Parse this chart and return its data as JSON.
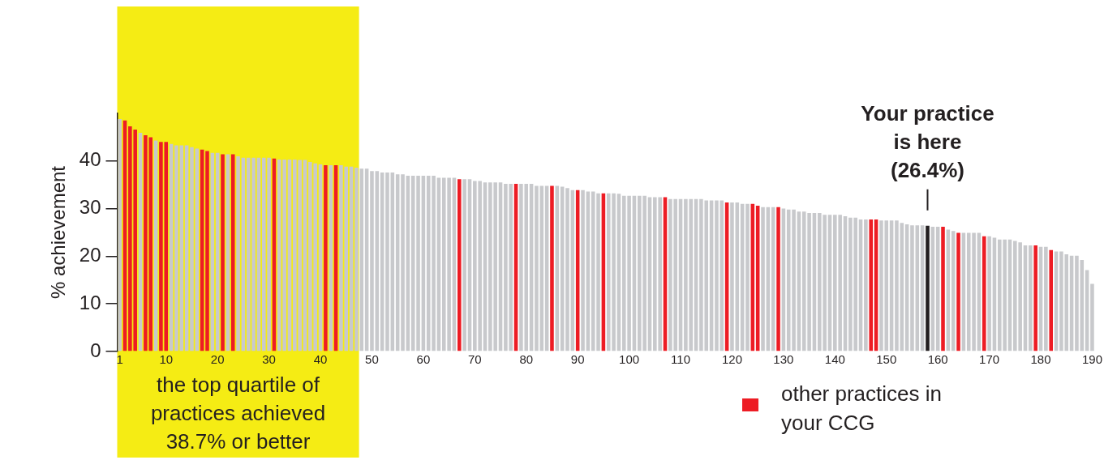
{
  "chart_data": {
    "type": "bar",
    "ylabel": "% achievement",
    "x": [
      1,
      2,
      3,
      4,
      5,
      6,
      7,
      8,
      9,
      10,
      11,
      12,
      13,
      14,
      15,
      16,
      17,
      18,
      19,
      20,
      21,
      22,
      23,
      24,
      25,
      26,
      27,
      28,
      29,
      30,
      31,
      32,
      33,
      34,
      35,
      36,
      37,
      38,
      39,
      40,
      41,
      42,
      43,
      44,
      45,
      46,
      47,
      48,
      49,
      50,
      51,
      52,
      53,
      54,
      55,
      56,
      57,
      58,
      59,
      60,
      61,
      62,
      63,
      64,
      65,
      66,
      67,
      68,
      69,
      70,
      71,
      72,
      73,
      74,
      75,
      76,
      77,
      78,
      79,
      80,
      81,
      82,
      83,
      84,
      85,
      86,
      87,
      88,
      89,
      90,
      91,
      92,
      93,
      94,
      95,
      96,
      97,
      98,
      99,
      100,
      101,
      102,
      103,
      104,
      105,
      106,
      107,
      108,
      109,
      110,
      111,
      112,
      113,
      114,
      115,
      116,
      117,
      118,
      119,
      120,
      121,
      122,
      123,
      124,
      125,
      126,
      127,
      128,
      129,
      130,
      131,
      132,
      133,
      134,
      135,
      136,
      137,
      138,
      139,
      140,
      141,
      142,
      143,
      144,
      145,
      146,
      147,
      148,
      149,
      150,
      151,
      152,
      153,
      154,
      155,
      156,
      157,
      158,
      159,
      160,
      161,
      162,
      163,
      164,
      165,
      166,
      167,
      168,
      169,
      170,
      171,
      172,
      173,
      174,
      175,
      176,
      177,
      178,
      179,
      180,
      181,
      182,
      183,
      184,
      185,
      186,
      187,
      188,
      189,
      190
    ],
    "xlim": [
      0.5,
      190.5
    ],
    "xticks": [
      1,
      10,
      20,
      30,
      40,
      50,
      60,
      70,
      80,
      90,
      100,
      110,
      120,
      130,
      140,
      150,
      160,
      170,
      180,
      190
    ],
    "ylim": [
      0,
      50
    ],
    "yticks": [
      0,
      10,
      20,
      30,
      40
    ],
    "grid": false,
    "legend": "bottom right",
    "series": [
      {
        "color": "#c8c9cc",
        "values": [
          48.8,
          null,
          null,
          null,
          45.9,
          null,
          null,
          44.3,
          null,
          null,
          43.6,
          43.3,
          43.3,
          43.3,
          42.9,
          42.6,
          null,
          null,
          41.7,
          41.7,
          null,
          41.4,
          null,
          41.0,
          40.7,
          40.7,
          40.7,
          40.7,
          40.7,
          40.7,
          null,
          40.3,
          40.3,
          40.3,
          40.3,
          40.2,
          40.2,
          39.8,
          39.5,
          39.3,
          null,
          39.1,
          null,
          39.1,
          38.8,
          38.8,
          38.6,
          38.4,
          38.4,
          37.9,
          37.9,
          37.6,
          37.6,
          37.6,
          37.2,
          37.2,
          36.9,
          36.9,
          36.9,
          36.9,
          36.9,
          36.9,
          36.5,
          36.5,
          36.5,
          36.5,
          null,
          36.2,
          36.2,
          35.8,
          35.8,
          35.5,
          35.5,
          35.5,
          35.5,
          35.2,
          35.2,
          null,
          35.2,
          35.2,
          35.2,
          34.8,
          34.8,
          34.8,
          null,
          34.8,
          34.6,
          34.3,
          33.9,
          null,
          33.9,
          33.6,
          33.6,
          33.2,
          null,
          33.2,
          33.2,
          33.1,
          32.7,
          32.7,
          32.7,
          32.7,
          32.7,
          32.4,
          32.4,
          32.4,
          null,
          32.0,
          32.0,
          32.0,
          32.0,
          32.0,
          32.0,
          32.0,
          31.7,
          31.7,
          31.7,
          31.7,
          null,
          31.3,
          31.3,
          31.0,
          31.0,
          null,
          null,
          30.3,
          30.3,
          30.3,
          null,
          30.0,
          29.8,
          29.8,
          29.4,
          29.4,
          29.1,
          29.1,
          29.1,
          28.7,
          28.7,
          28.7,
          28.7,
          28.4,
          28.1,
          28.1,
          27.7,
          27.7,
          null,
          null,
          27.5,
          27.5,
          27.5,
          27.5,
          27.0,
          26.7,
          26.5,
          26.5,
          26.5,
          null,
          26.2,
          26.2,
          null,
          25.6,
          25.3,
          null,
          24.9,
          24.9,
          24.9,
          24.9,
          null,
          24.2,
          23.9,
          23.5,
          23.5,
          23.5,
          23.2,
          22.9,
          22.3,
          22.3,
          null,
          22.0,
          22.0,
          null,
          21.0,
          21.0,
          20.4,
          20.1,
          20.1,
          19.2,
          17.1,
          14.2
        ]
      },
      {
        "name": "other practices in your CCG",
        "color": "#ed1c24",
        "values": [
          null,
          48.5,
          47.3,
          46.6,
          null,
          45.4,
          45.0,
          null,
          44.0,
          44.0,
          null,
          null,
          null,
          null,
          null,
          null,
          42.4,
          42.1,
          null,
          null,
          41.4,
          null,
          41.4,
          null,
          null,
          null,
          null,
          null,
          null,
          null,
          40.5,
          null,
          null,
          null,
          null,
          null,
          null,
          null,
          null,
          null,
          39.1,
          null,
          39.1,
          null,
          null,
          null,
          null,
          null,
          null,
          null,
          null,
          null,
          null,
          null,
          null,
          null,
          null,
          null,
          null,
          null,
          null,
          null,
          null,
          null,
          null,
          null,
          36.2,
          null,
          null,
          null,
          null,
          null,
          null,
          null,
          null,
          null,
          null,
          35.2,
          null,
          null,
          null,
          null,
          null,
          null,
          34.8,
          null,
          null,
          null,
          null,
          33.9,
          null,
          null,
          null,
          null,
          33.2,
          null,
          null,
          null,
          null,
          null,
          null,
          null,
          null,
          null,
          null,
          null,
          32.4,
          null,
          null,
          null,
          null,
          null,
          null,
          null,
          null,
          null,
          null,
          null,
          31.3,
          null,
          null,
          null,
          null,
          31.0,
          30.6,
          null,
          null,
          null,
          30.3,
          null,
          null,
          null,
          null,
          null,
          null,
          null,
          null,
          null,
          null,
          null,
          null,
          null,
          null,
          null,
          null,
          null,
          27.7,
          27.7,
          null,
          null,
          null,
          null,
          null,
          null,
          null,
          null,
          null,
          null,
          null,
          null,
          26.2,
          null,
          null,
          24.9,
          null,
          null,
          null,
          null,
          24.2,
          null,
          null,
          null,
          null,
          null,
          null,
          null,
          null,
          null,
          22.3,
          null,
          null,
          21.3,
          null,
          null,
          null,
          null,
          null,
          null,
          null,
          null
        ]
      },
      {
        "color": "#231f20",
        "values": [
          null,
          null,
          null,
          null,
          null,
          null,
          null,
          null,
          null,
          null,
          null,
          null,
          null,
          null,
          null,
          null,
          null,
          null,
          null,
          null,
          null,
          null,
          null,
          null,
          null,
          null,
          null,
          null,
          null,
          null,
          null,
          null,
          null,
          null,
          null,
          null,
          null,
          null,
          null,
          null,
          null,
          null,
          null,
          null,
          null,
          null,
          null,
          null,
          null,
          null,
          null,
          null,
          null,
          null,
          null,
          null,
          null,
          null,
          null,
          null,
          null,
          null,
          null,
          null,
          null,
          null,
          null,
          null,
          null,
          null,
          null,
          null,
          null,
          null,
          null,
          null,
          null,
          null,
          null,
          null,
          null,
          null,
          null,
          null,
          null,
          null,
          null,
          null,
          null,
          null,
          null,
          null,
          null,
          null,
          null,
          null,
          null,
          null,
          null,
          null,
          null,
          null,
          null,
          null,
          null,
          null,
          null,
          null,
          null,
          null,
          null,
          null,
          null,
          null,
          null,
          null,
          null,
          null,
          null,
          null,
          null,
          null,
          null,
          null,
          null,
          null,
          null,
          null,
          null,
          null,
          null,
          null,
          null,
          null,
          null,
          null,
          null,
          null,
          null,
          null,
          null,
          null,
          null,
          null,
          null,
          null,
          null,
          null,
          null,
          null,
          null,
          null,
          null,
          null,
          null,
          null,
          null,
          26.4,
          null,
          null,
          null,
          null,
          null,
          null,
          null,
          null,
          null,
          null,
          null,
          null,
          null,
          null,
          null,
          null,
          null,
          null,
          null,
          null,
          null,
          null,
          null,
          null,
          null,
          null,
          null,
          null,
          null,
          null,
          null,
          null
        ]
      }
    ],
    "bands": [
      {
        "axis": "x",
        "from": 0.5,
        "to": 47.5,
        "label": "the top quartile of practices achieved 38.7% or better",
        "color": "#f5ec14"
      }
    ],
    "annotations": [
      {
        "text": "Your practice is here (26.4%)",
        "x": 158,
        "y": 26.4
      }
    ]
  }
}
